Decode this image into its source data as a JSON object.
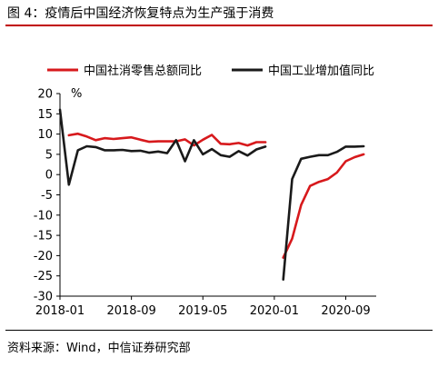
{
  "title": "图 4：疫情后中国经济恢复特点为生产强于消费",
  "source": "资料来源：Wind，中信证券研究部",
  "colors": {
    "retail": "#d7191c",
    "industry": "#1a1a1a",
    "title_rule": "#c00000"
  },
  "chart_data": {
    "type": "line",
    "title": "",
    "xlabel": "",
    "ylabel": "%",
    "ylim": [
      -30,
      20
    ],
    "yticks": [
      "20",
      "15",
      "10",
      "5",
      "0",
      "-5",
      "-10",
      "-15",
      "-20",
      "-25",
      "-30"
    ],
    "xticks": [
      "2018-01",
      "2018-09",
      "2019-05",
      "2020-01",
      "2020-09"
    ],
    "grid": false,
    "legend": "top",
    "x": [
      "2018-01",
      "2018-02",
      "2018-03",
      "2018-04",
      "2018-05",
      "2018-06",
      "2018-07",
      "2018-08",
      "2018-09",
      "2018-10",
      "2018-11",
      "2018-12",
      "2019-01",
      "2019-02",
      "2019-03",
      "2019-04",
      "2019-05",
      "2019-06",
      "2019-07",
      "2019-08",
      "2019-09",
      "2019-10",
      "2019-11",
      "2019-12",
      "2020-01",
      "2020-02",
      "2020-03",
      "2020-04",
      "2020-05",
      "2020-06",
      "2020-07",
      "2020-08",
      "2020-09",
      "2020-10",
      "2020-11",
      "2020-12"
    ],
    "series": [
      {
        "name": "中国社消零售总额同比",
        "values": [
          null,
          9.7,
          10.1,
          9.4,
          8.5,
          9.0,
          8.8,
          9.0,
          9.2,
          8.6,
          8.1,
          8.2,
          8.2,
          8.2,
          8.7,
          7.2,
          8.6,
          9.8,
          7.6,
          7.5,
          7.8,
          7.2,
          8.0,
          8.0,
          null,
          -20.5,
          -15.8,
          -7.5,
          -2.8,
          -1.8,
          -1.1,
          0.5,
          3.3,
          4.3,
          5.0,
          null
        ]
      },
      {
        "name": "中国工业增加值同比",
        "values": [
          16.0,
          -2.5,
          6.0,
          7.0,
          6.8,
          6.0,
          6.0,
          6.1,
          5.8,
          5.9,
          5.4,
          5.7,
          5.3,
          8.5,
          3.3,
          8.5,
          5.0,
          6.3,
          4.8,
          4.4,
          5.8,
          4.7,
          6.2,
          6.9,
          null,
          -25.9,
          -1.1,
          3.9,
          4.4,
          4.8,
          4.8,
          5.6,
          6.9,
          6.9,
          7.0,
          null
        ]
      }
    ]
  }
}
